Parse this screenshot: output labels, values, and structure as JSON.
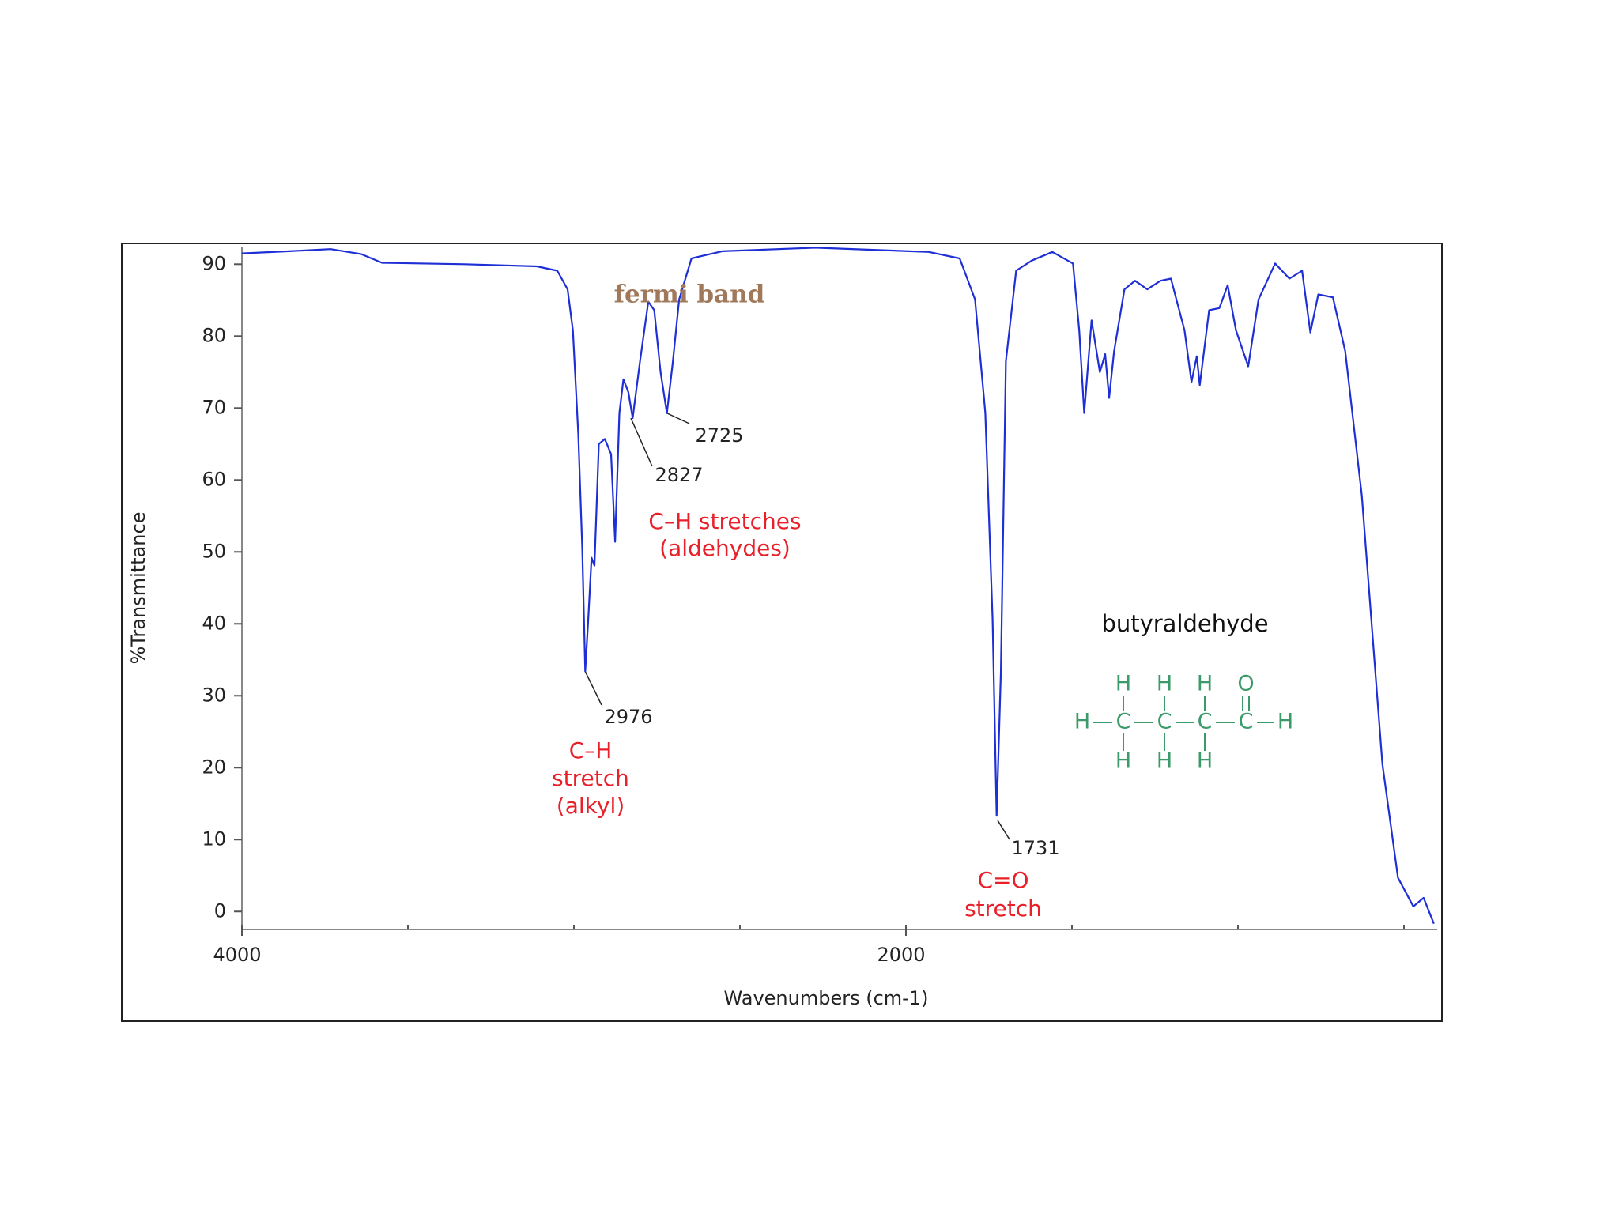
{
  "chart_data": {
    "type": "line",
    "xlabel": "Wavenumbers (cm-1)",
    "ylabel": "%Transmittance",
    "color": "#1f2fd6",
    "xlim": [
      4000,
      400
    ],
    "ylim": [
      -2.5,
      93
    ],
    "xticks": [
      4000,
      2000
    ],
    "xminor": [
      3500,
      3000,
      2500,
      1500,
      1000,
      500
    ],
    "yticks": [
      0,
      10,
      20,
      30,
      40,
      50,
      60,
      70,
      80,
      90
    ],
    "x": [
      4000,
      3857,
      3733,
      3640,
      3578,
      3329,
      3112,
      3050,
      3019,
      3003,
      2987,
      2975,
      2966,
      2957,
      2947,
      2938,
      2925,
      2907,
      2888,
      2876,
      2863,
      2851,
      2836,
      2823,
      2801,
      2776,
      2758,
      2739,
      2720,
      2702,
      2683,
      2646,
      2553,
      2273,
      1931,
      1838,
      1792,
      1761,
      1739,
      1727,
      1714,
      1699,
      1668,
      1621,
      1559,
      1497,
      1478,
      1463,
      1441,
      1416,
      1400,
      1388,
      1373,
      1342,
      1310,
      1273,
      1233,
      1202,
      1161,
      1140,
      1124,
      1115,
      1087,
      1056,
      1031,
      1006,
      969,
      938,
      888,
      845,
      807,
      782,
      758,
      714,
      677,
      627,
      565,
      518,
      472,
      441,
      410
    ],
    "values": [
      91.5,
      91.8,
      92.1,
      91.4,
      90.2,
      90,
      89.7,
      89.1,
      86.5,
      80.8,
      66.4,
      50.6,
      33.4,
      40.6,
      49.2,
      48.1,
      65,
      65.7,
      63.6,
      51.4,
      69.3,
      74,
      72.2,
      68.6,
      76.5,
      84.8,
      83.6,
      75,
      69.3,
      76.5,
      85.1,
      90.8,
      91.8,
      92.3,
      91.7,
      90.8,
      85.1,
      69.3,
      40.6,
      13.3,
      33.4,
      76.5,
      89.1,
      90.5,
      91.7,
      90.1,
      80.8,
      69.3,
      82.2,
      75,
      77.5,
      71.4,
      77.9,
      86.5,
      87.7,
      86.5,
      87.7,
      88,
      80.8,
      73.6,
      77.2,
      73.2,
      83.6,
      83.9,
      87.1,
      80.8,
      75.8,
      85.1,
      90.1,
      88,
      89.1,
      80.5,
      85.8,
      85.4,
      77.9,
      57.8,
      20.5,
      4.7,
      0.7,
      1.9,
      -1.7
    ],
    "annotations": [
      {
        "text": "fermi band",
        "color": "#a0785a"
      },
      {
        "text": "2725",
        "color": "#222222"
      },
      {
        "text": "2827",
        "color": "#222222"
      },
      {
        "text": "C–H stretches",
        "color": "#e8202a"
      },
      {
        "text": "(aldehydes)",
        "color": "#e8202a"
      },
      {
        "text": "2976",
        "color": "#222222"
      },
      {
        "text": "C–H",
        "color": "#e8202a"
      },
      {
        "text": "stretch",
        "color": "#e8202a"
      },
      {
        "text": "(alkyl)",
        "color": "#e8202a"
      },
      {
        "text": "1731",
        "color": "#222222"
      },
      {
        "text": "C=O",
        "color": "#e8202a"
      },
      {
        "text": "stretch",
        "color": "#e8202a"
      },
      {
        "text": "butyraldehyde",
        "color": "#111111"
      }
    ],
    "molecule": {
      "color": "#3a9a6a",
      "top": [
        "H",
        "H",
        "H",
        "O"
      ],
      "middle": [
        "H",
        "C",
        "C",
        "C",
        "C",
        "H"
      ],
      "bottom": [
        "H",
        "H",
        "H"
      ]
    }
  }
}
